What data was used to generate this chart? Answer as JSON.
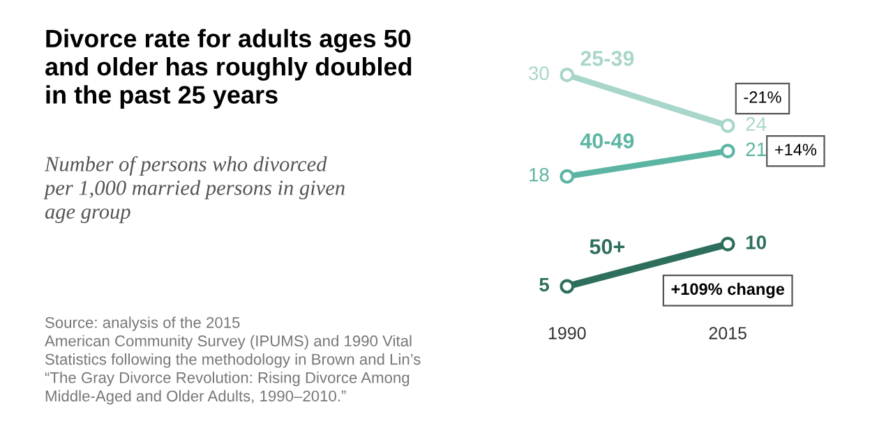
{
  "chart_data": {
    "type": "line",
    "title": "Divorce rate for adults ages 50\nand older has roughly doubled\nin the past 25 years",
    "subtitle": "Number of persons who divorced\nper 1,000 married persons in given\nage group",
    "categories": [
      "1990",
      "2015"
    ],
    "series": [
      {
        "name": "25-39",
        "color": "#a9d6ca",
        "values": [
          30,
          24
        ]
      },
      {
        "name": "40-49",
        "color": "#5cb5a2",
        "values": [
          18,
          21
        ]
      },
      {
        "name": "50+",
        "color": "#2e6e5d",
        "values": [
          5,
          10
        ]
      }
    ],
    "data_labels": true,
    "marker": "circle",
    "line_style": "solid",
    "grid": false,
    "legend": false,
    "tick_labels": "x",
    "annotations": [
      {
        "text": "-21%",
        "x": "2015",
        "y": 24
      },
      {
        "text": "+14%",
        "x": "2015",
        "y": 21
      },
      {
        "text": "+109% change",
        "x": "2015",
        "y": 10
      },
      "Source: analysis of the 2015\nAmerican Community Survey (IPUMS) and 1990 Vital\nStatistics following the methodology in Brown and Lin’s\n“The Gray Divorce Revolution: Rising Divorce Among\nMiddle-Aged and Older Adults, 1990–2010.”"
    ]
  }
}
